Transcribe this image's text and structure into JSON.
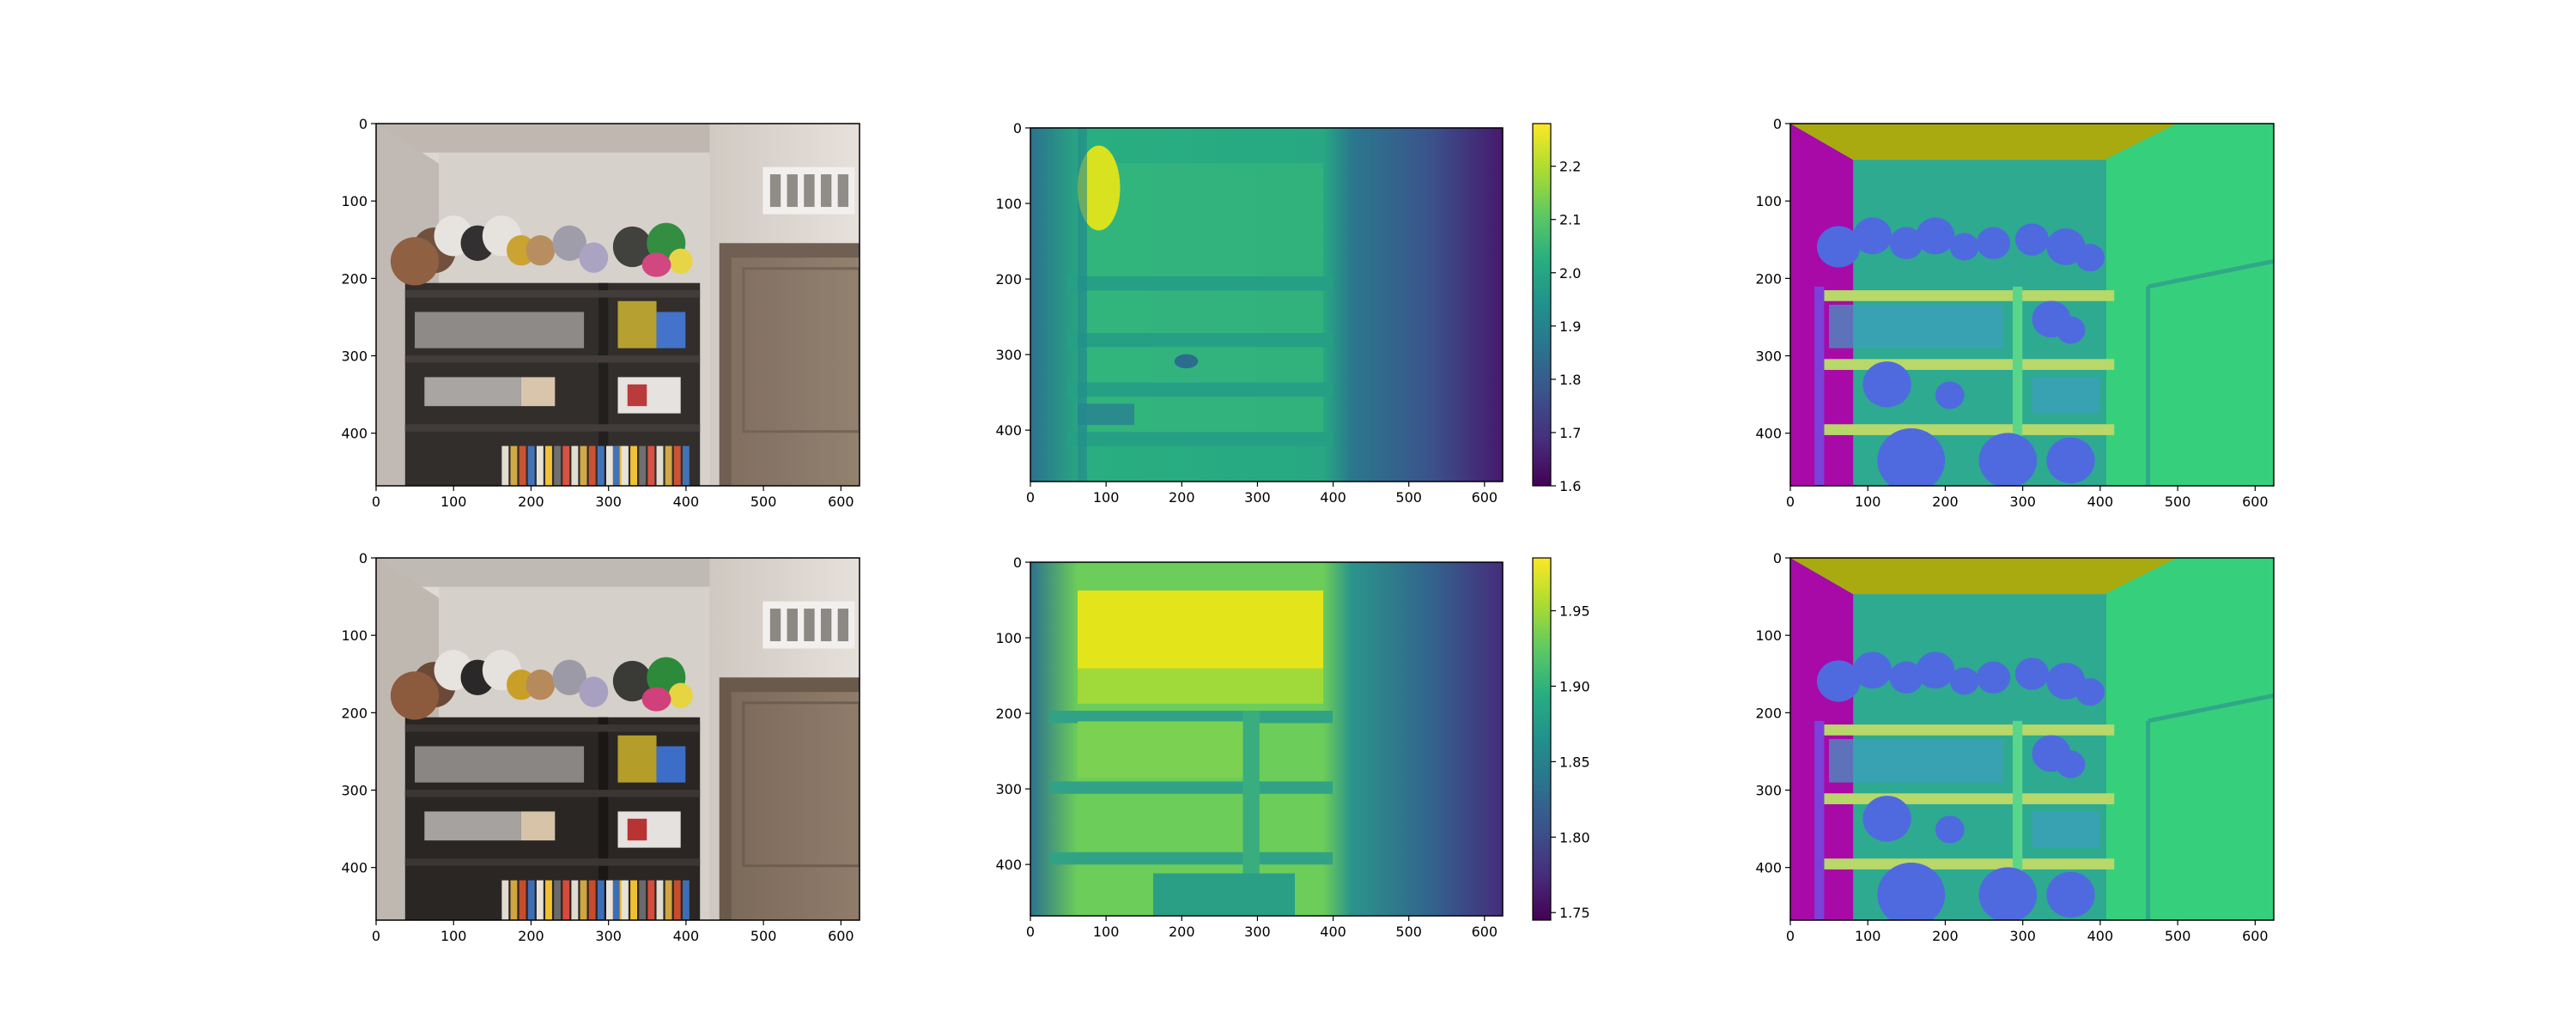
{
  "chart_data": [
    {
      "type": "heatmap",
      "panel": "rgb-image",
      "row": 0,
      "xticks": [
        0,
        100,
        200,
        300,
        400,
        500,
        600
      ],
      "yticks": [
        0,
        100,
        200,
        300,
        400
      ],
      "xlim": [
        0,
        624
      ],
      "ylim": [
        468,
        0
      ],
      "content": "photo",
      "colors": {
        "ceiling": "#bdb5ad",
        "wall": "#dcd6d0",
        "shelf": "#2a2624",
        "door": "#857363",
        "plush_accent": "#c8a028"
      }
    },
    {
      "type": "heatmap",
      "panel": "depth-map",
      "row": 0,
      "colormap": "viridis",
      "xticks": [
        0,
        100,
        200,
        300,
        400,
        500,
        600
      ],
      "yticks": [
        0,
        100,
        200,
        300,
        400
      ],
      "xlim": [
        0,
        624
      ],
      "ylim": [
        468,
        0
      ],
      "colorbar": {
        "range": [
          1.6,
          2.28
        ],
        "ticks": [
          "1.6",
          "1.7",
          "1.8",
          "1.9",
          "2.0",
          "2.1",
          "2.2"
        ]
      }
    },
    {
      "type": "heatmap",
      "panel": "normal-map",
      "row": 0,
      "xticks": [
        0,
        100,
        200,
        300,
        400,
        500,
        600
      ],
      "yticks": [
        0,
        100,
        200,
        300,
        400
      ],
      "xlim": [
        0,
        624
      ],
      "ylim": [
        468,
        0
      ],
      "colors": {
        "left_wall": "#a80aa8",
        "ceiling": "#a8aa10",
        "back_wall": "#2eaa90",
        "right_wall": "#36d07c",
        "objects": "#4f6adf"
      }
    },
    {
      "type": "heatmap",
      "panel": "rgb-image",
      "row": 1,
      "xticks": [
        0,
        100,
        200,
        300,
        400,
        500,
        600
      ],
      "yticks": [
        0,
        100,
        200,
        300,
        400
      ],
      "xlim": [
        0,
        624
      ],
      "ylim": [
        468,
        0
      ],
      "content": "photo",
      "colors": {
        "ceiling": "#c0bab4",
        "wall": "#e0dad5",
        "shelf": "#2a2624",
        "door": "#8a7868",
        "plush_accent": "#c8a028"
      }
    },
    {
      "type": "heatmap",
      "panel": "depth-map",
      "row": 1,
      "colormap": "viridis",
      "xticks": [
        0,
        100,
        200,
        300,
        400,
        500,
        600
      ],
      "yticks": [
        0,
        100,
        200,
        300,
        400
      ],
      "xlim": [
        0,
        624
      ],
      "ylim": [
        468,
        0
      ],
      "colorbar": {
        "range": [
          1.745,
          1.985
        ],
        "ticks": [
          "1.75",
          "1.80",
          "1.85",
          "1.90",
          "1.95"
        ]
      }
    },
    {
      "type": "heatmap",
      "panel": "normal-map",
      "row": 1,
      "xticks": [
        0,
        100,
        200,
        300,
        400,
        500,
        600
      ],
      "yticks": [
        0,
        100,
        200,
        300,
        400
      ],
      "xlim": [
        0,
        624
      ],
      "ylim": [
        468,
        0
      ],
      "colors": {
        "left_wall": "#a80aa8",
        "ceiling": "#a8aa10",
        "back_wall": "#2eaa90",
        "right_wall": "#36d07c",
        "objects": "#4f6adf"
      }
    }
  ]
}
